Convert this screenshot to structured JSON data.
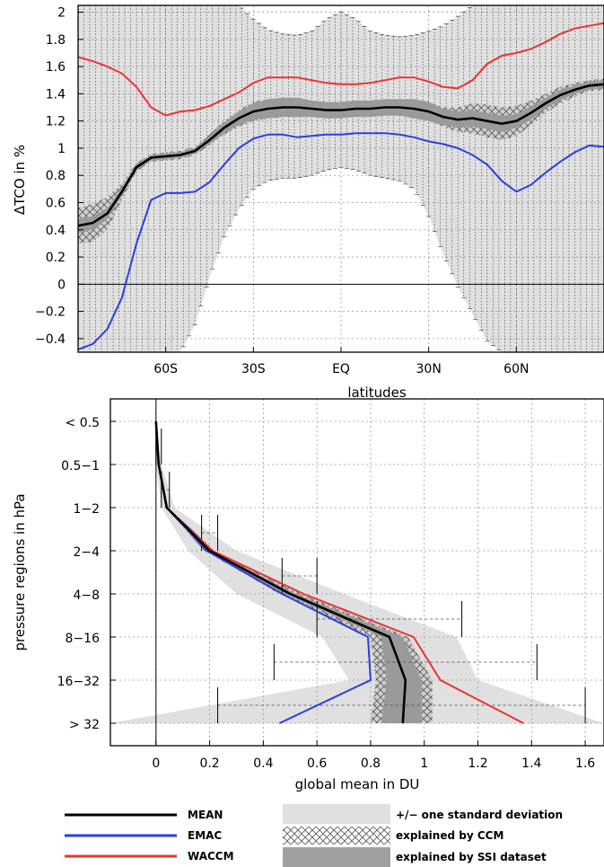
{
  "chart_data": [
    {
      "type": "line",
      "title": "",
      "xlabel": "latitudes",
      "ylabel": "ΔTCO in %",
      "xlim": [
        -90,
        90
      ],
      "ylim": [
        -0.5,
        2.05
      ],
      "x_ticks": [
        -60,
        -30,
        0,
        30,
        60
      ],
      "x_tick_labels": [
        "60S",
        "30S",
        "EQ",
        "30N",
        "60N"
      ],
      "y_ticks": [
        -0.4,
        -0.2,
        0,
        0.2,
        0.4,
        0.6,
        0.8,
        1,
        1.2,
        1.4,
        1.6,
        1.8,
        2
      ],
      "y_tick_labels": [
        "−0.4",
        "−0.2",
        "0",
        "0.2",
        "0.4",
        "0.6",
        "0.8",
        "1",
        "1.2",
        "1.4",
        "1.6",
        "1.8",
        "2"
      ],
      "grid": true,
      "x": [
        -90,
        -85,
        -80,
        -75,
        -70,
        -65,
        -60,
        -55,
        -50,
        -45,
        -40,
        -35,
        -30,
        -25,
        -20,
        -15,
        -10,
        -5,
        0,
        5,
        10,
        15,
        20,
        25,
        30,
        35,
        40,
        45,
        50,
        55,
        60,
        65,
        70,
        75,
        80,
        85,
        90
      ],
      "series": [
        {
          "name": "MEAN",
          "color": "#000000",
          "values": [
            0.43,
            0.45,
            0.52,
            0.68,
            0.86,
            0.93,
            0.94,
            0.95,
            0.98,
            1.06,
            1.15,
            1.22,
            1.27,
            1.29,
            1.3,
            1.3,
            1.29,
            1.28,
            1.28,
            1.29,
            1.29,
            1.3,
            1.3,
            1.29,
            1.27,
            1.23,
            1.21,
            1.22,
            1.2,
            1.18,
            1.2,
            1.26,
            1.33,
            1.39,
            1.43,
            1.46,
            1.47
          ]
        },
        {
          "name": "EMAC",
          "color": "#2a3fe0",
          "values": [
            -0.48,
            -0.44,
            -0.33,
            -0.1,
            0.3,
            0.62,
            0.67,
            0.67,
            0.68,
            0.75,
            0.88,
            1.0,
            1.07,
            1.1,
            1.1,
            1.08,
            1.09,
            1.1,
            1.1,
            1.11,
            1.11,
            1.11,
            1.1,
            1.08,
            1.05,
            1.03,
            1.0,
            0.95,
            0.88,
            0.76,
            0.68,
            0.73,
            0.82,
            0.9,
            0.97,
            1.02,
            1.01
          ]
        },
        {
          "name": "WACCM",
          "color": "#ee3232",
          "values": [
            1.67,
            1.64,
            1.6,
            1.55,
            1.45,
            1.3,
            1.24,
            1.27,
            1.28,
            1.31,
            1.36,
            1.41,
            1.48,
            1.52,
            1.52,
            1.52,
            1.5,
            1.48,
            1.47,
            1.47,
            1.48,
            1.5,
            1.52,
            1.52,
            1.49,
            1.45,
            1.44,
            1.5,
            1.62,
            1.68,
            1.7,
            1.73,
            1.78,
            1.84,
            1.88,
            1.9,
            1.92
          ]
        }
      ],
      "std_upper": [
        2.05,
        2.05,
        2.05,
        2.05,
        2.05,
        2.05,
        2.05,
        2.05,
        2.05,
        2.05,
        2.05,
        2.05,
        1.95,
        1.87,
        1.84,
        1.83,
        1.86,
        1.95,
        2.0,
        1.95,
        1.86,
        1.83,
        1.82,
        1.83,
        1.86,
        1.9,
        1.97,
        2.05,
        2.05,
        2.05,
        2.05,
        2.05,
        2.05,
        2.05,
        2.05,
        2.05,
        2.05
      ],
      "std_lower": [
        -0.5,
        -0.5,
        -0.5,
        -0.5,
        -0.5,
        -0.5,
        -0.5,
        -0.5,
        -0.3,
        0.05,
        0.35,
        0.55,
        0.7,
        0.76,
        0.78,
        0.78,
        0.8,
        0.84,
        0.86,
        0.84,
        0.8,
        0.78,
        0.76,
        0.7,
        0.5,
        0.22,
        -0.02,
        -0.22,
        -0.42,
        -0.5,
        -0.5,
        -0.5,
        -0.5,
        -0.5,
        -0.5,
        -0.5,
        -0.5
      ],
      "ccm_half_width": [
        0.13,
        0.14,
        0.12,
        0.06,
        0.03,
        0.03,
        0.03,
        0.03,
        0.03,
        0.04,
        0.05,
        0.06,
        0.07,
        0.07,
        0.07,
        0.07,
        0.06,
        0.06,
        0.06,
        0.06,
        0.06,
        0.06,
        0.06,
        0.07,
        0.07,
        0.07,
        0.09,
        0.11,
        0.12,
        0.12,
        0.11,
        0.09,
        0.07,
        0.06,
        0.05,
        0.04,
        0.04
      ],
      "ssi_half_width": [
        0.05,
        0.05,
        0.04,
        0.03,
        0.02,
        0.02,
        0.02,
        0.02,
        0.02,
        0.03,
        0.04,
        0.05,
        0.06,
        0.07,
        0.07,
        0.07,
        0.06,
        0.06,
        0.06,
        0.06,
        0.06,
        0.06,
        0.06,
        0.07,
        0.07,
        0.06,
        0.06,
        0.06,
        0.06,
        0.06,
        0.05,
        0.05,
        0.04,
        0.04,
        0.03,
        0.03,
        0.03
      ]
    },
    {
      "type": "line",
      "title": "",
      "xlabel": "global mean in DU",
      "ylabel": "pressure regions in hPa",
      "xlim": [
        -0.17,
        1.67
      ],
      "categories": [
        "< 0.5",
        "0.5−1",
        "1−2",
        "2−4",
        "4−8",
        "8−16",
        "16−32",
        "> 32"
      ],
      "x_ticks": [
        0,
        0.2,
        0.4,
        0.6,
        0.8,
        1,
        1.2,
        1.4,
        1.6
      ],
      "x_tick_labels": [
        "0",
        "0.2",
        "0.4",
        "0.6",
        "0.8",
        "1",
        "1.2",
        "1.4",
        "1.6"
      ],
      "grid": true,
      "series": [
        {
          "name": "MEAN",
          "color": "#000000",
          "values": [
            0.0,
            0.01,
            0.04,
            0.2,
            0.5,
            0.87,
            0.93,
            0.92
          ]
        },
        {
          "name": "EMAC",
          "color": "#2a3fe0",
          "values": [
            0.0,
            0.01,
            0.04,
            0.19,
            0.47,
            0.79,
            0.8,
            0.46
          ]
        },
        {
          "name": "WACCM",
          "color": "#ee3232",
          "values": [
            0.0,
            0.01,
            0.04,
            0.21,
            0.55,
            0.96,
            1.06,
            1.37
          ]
        }
      ],
      "std_lower": [
        0.0,
        0.0,
        0.02,
        0.12,
        0.3,
        0.62,
        0.72,
        -0.17
      ],
      "std_upper": [
        0.0,
        0.02,
        0.07,
        0.3,
        0.7,
        1.12,
        1.2,
        1.67
      ],
      "ccm_lower": [
        0.0,
        0.01,
        0.035,
        0.18,
        0.46,
        0.8,
        0.82,
        0.8
      ],
      "ccm_upper": [
        0.0,
        0.015,
        0.045,
        0.22,
        0.54,
        0.94,
        1.03,
        1.03
      ],
      "ssi_lower": [
        0.0,
        0.01,
        0.037,
        0.19,
        0.48,
        0.84,
        0.86,
        0.84
      ],
      "ssi_upper": [
        0.0,
        0.013,
        0.043,
        0.21,
        0.52,
        0.92,
        0.99,
        0.99
      ],
      "error_bars": [
        {
          "low": 0.0,
          "high": 0.02
        },
        {
          "low": 0.02,
          "high": 0.05
        },
        {
          "low": 0.17,
          "high": 0.23
        },
        {
          "low": 0.47,
          "high": 0.6
        },
        {
          "low": 0.6,
          "high": 1.14
        },
        {
          "low": 0.44,
          "high": 1.42
        },
        {
          "low": 0.23,
          "high": 1.6
        }
      ]
    }
  ],
  "legend": {
    "lines": [
      {
        "label": "MEAN",
        "color": "#000000"
      },
      {
        "label": "EMAC",
        "color": "#2a3fe0"
      },
      {
        "label": "WACCM",
        "color": "#ee3232"
      }
    ],
    "areas": [
      {
        "label": "+/− one standard deviation",
        "style": "light-gray"
      },
      {
        "label": "explained by CCM",
        "style": "crosshatch"
      },
      {
        "label": "explained by SSI dataset",
        "style": "dark-gray"
      }
    ]
  }
}
